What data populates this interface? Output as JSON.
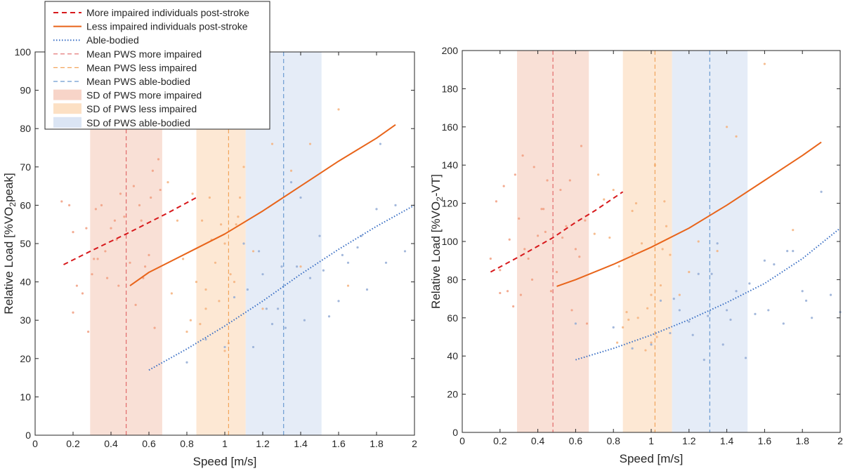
{
  "chart_data": [
    {
      "type": "line",
      "xlabel": "Speed [m/s]",
      "ylabel": {
        "pre": "Relative Load [%VO",
        "sub": "2",
        "post": "peak]"
      },
      "xlim": [
        0,
        2
      ],
      "ylim": [
        0,
        100
      ],
      "xticks": [
        0,
        0.2,
        0.4,
        0.6,
        0.8,
        1,
        1.2,
        1.4,
        1.6,
        1.8,
        2
      ],
      "xtick_labels": [
        "0",
        "0.2",
        "0.4",
        "0.6",
        "0.8",
        "1",
        "1.2",
        "1.4",
        "1.6",
        "1.8",
        "2"
      ],
      "yticks": [
        0,
        10,
        20,
        30,
        40,
        50,
        60,
        70,
        80,
        90,
        100
      ],
      "ytick_labels": [
        "0",
        "10",
        "20",
        "30",
        "40",
        "50",
        "60",
        "70",
        "80",
        "90",
        "100"
      ],
      "grid": false,
      "legend_position": "top-left",
      "series": [
        {
          "name": "More impaired individuals post-stroke",
          "style": "dashed",
          "color": "#d7191c",
          "x": [
            0.15,
            0.3,
            0.48,
            0.6,
            0.7,
            0.85
          ],
          "y": [
            44.5,
            48.2,
            52.5,
            55.5,
            58,
            62
          ]
        },
        {
          "name": "Less impaired individuals post-stroke",
          "style": "solid",
          "color": "#e8641a",
          "x": [
            0.5,
            0.6,
            0.8,
            1.0,
            1.2,
            1.4,
            1.6,
            1.8,
            1.9
          ],
          "y": [
            39,
            42.5,
            47.5,
            52.5,
            58.5,
            65,
            71.5,
            77.5,
            81
          ]
        },
        {
          "name": "Able-bodied",
          "style": "dotted",
          "color": "#3a6fc4",
          "x": [
            0.6,
            0.8,
            1.0,
            1.2,
            1.4,
            1.6,
            1.8,
            2.0
          ],
          "y": [
            17,
            22.5,
            28.5,
            35,
            42,
            48.5,
            54.5,
            60
          ]
        }
      ],
      "mean_lines": [
        {
          "name": "Mean PWS more impaired",
          "x": 0.48,
          "color": "#e26a6a"
        },
        {
          "name": "Mean PWS less impaired",
          "x": 1.02,
          "color": "#f2a55c"
        },
        {
          "name": "Mean PWS able-bodied",
          "x": 1.31,
          "color": "#6b9bd1"
        }
      ],
      "sd_bands": [
        {
          "name": "SD of PWS more impaired",
          "x0": 0.29,
          "x1": 0.67,
          "color": "#f4c6b5"
        },
        {
          "name": "SD of PWS less impaired",
          "x0": 0.85,
          "x1": 1.11,
          "color": "#fbd5b0"
        },
        {
          "name": "SD of PWS able-bodied",
          "x0": 1.11,
          "x1": 1.51,
          "color": "#cfdcf0"
        }
      ],
      "scatter": [
        {
          "group": "more impaired",
          "color": "#f19d80",
          "x": [
            0.14,
            0.18,
            0.2,
            0.25,
            0.28,
            0.3,
            0.32,
            0.35,
            0.38,
            0.4,
            0.42,
            0.45,
            0.5,
            0.52,
            0.55,
            0.58,
            0.6,
            0.62,
            0.65,
            0.22,
            0.27,
            0.33,
            0.37,
            0.43,
            0.47,
            0.53,
            0.57,
            0.63,
            0.66,
            0.2,
            0.31,
            0.44,
            0.56,
            0.61
          ],
          "y": [
            61,
            60,
            53,
            37,
            27,
            42,
            59,
            60,
            41,
            54,
            56,
            63,
            45,
            65,
            60,
            44,
            47,
            69,
            72,
            39,
            54,
            46,
            48,
            51,
            57,
            34,
            41,
            28,
            64,
            32,
            46,
            39,
            56,
            62
          ]
        },
        {
          "group": "less impaired",
          "color": "#f5b27c",
          "x": [
            0.7,
            0.75,
            0.8,
            0.85,
            0.88,
            0.9,
            0.92,
            0.95,
            0.98,
            1.0,
            1.02,
            1.05,
            1.08,
            1.1,
            0.72,
            0.78,
            0.83,
            0.87,
            0.93,
            0.97,
            1.03,
            1.07,
            1.15,
            1.25,
            1.35,
            1.45,
            1.6,
            1.65,
            0.82,
            0.9,
            1.0,
            1.06,
            1.2,
            1.4
          ],
          "y": [
            66,
            56,
            27,
            40,
            56,
            33,
            62,
            45,
            55,
            50,
            24,
            40,
            62,
            70,
            37,
            46,
            63,
            29,
            51,
            35,
            42,
            57,
            48,
            76,
            69,
            76,
            85,
            39,
            30,
            38,
            22,
            55,
            33,
            44
          ]
        },
        {
          "group": "able-bodied",
          "color": "#93acd5",
          "x": [
            0.8,
            0.9,
            1.0,
            1.05,
            1.1,
            1.15,
            1.2,
            1.25,
            1.3,
            1.35,
            1.4,
            1.45,
            1.5,
            1.55,
            1.6,
            1.65,
            1.7,
            1.75,
            1.8,
            1.85,
            1.9,
            1.95,
            1.12,
            1.22,
            1.32,
            1.42,
            1.52,
            1.62,
            1.72,
            1.82,
            1.38,
            1.28,
            1.18
          ],
          "y": [
            19,
            25,
            23,
            36,
            50,
            23,
            42,
            29,
            44,
            66,
            62,
            41,
            52,
            31,
            35,
            45,
            49,
            38,
            59,
            45,
            60,
            48,
            38,
            33,
            28,
            30,
            43,
            47,
            52,
            76,
            44,
            33,
            48
          ]
        }
      ]
    },
    {
      "type": "line",
      "xlabel": "Speed [m/s]",
      "ylabel": {
        "pre": "Relative Load [%VO",
        "sub": "2",
        "post": "-VT]"
      },
      "xlim": [
        0,
        2
      ],
      "ylim": [
        0,
        200
      ],
      "xticks": [
        0,
        0.2,
        0.4,
        0.6,
        0.8,
        1,
        1.2,
        1.4,
        1.6,
        1.8,
        2
      ],
      "xtick_labels": [
        "0",
        "0.2",
        "0.4",
        "0.6",
        "0.8",
        "1",
        "1.2",
        "1.4",
        "1.6",
        "1.8",
        "2"
      ],
      "yticks": [
        0,
        20,
        40,
        60,
        80,
        100,
        120,
        140,
        160,
        180,
        200
      ],
      "ytick_labels": [
        "0",
        "20",
        "40",
        "60",
        "80",
        "100",
        "120",
        "140",
        "160",
        "180",
        "200"
      ],
      "grid": false,
      "series": [
        {
          "name": "More impaired individuals post-stroke",
          "style": "dashed",
          "color": "#d7191c",
          "x": [
            0.15,
            0.3,
            0.48,
            0.6,
            0.7,
            0.85
          ],
          "y": [
            84,
            92,
            102,
            110,
            116,
            126
          ]
        },
        {
          "name": "Less impaired individuals post-stroke",
          "style": "solid",
          "color": "#e8641a",
          "x": [
            0.5,
            0.6,
            0.8,
            1.0,
            1.2,
            1.4,
            1.6,
            1.8,
            1.9
          ],
          "y": [
            76.5,
            80,
            88,
            97,
            107,
            119,
            132,
            145,
            152
          ]
        },
        {
          "name": "Able-bodied",
          "style": "dotted",
          "color": "#3a6fc4",
          "x": [
            0.6,
            0.8,
            1.0,
            1.2,
            1.4,
            1.6,
            1.8,
            2.0
          ],
          "y": [
            38,
            44,
            51,
            59,
            68,
            78,
            91,
            107
          ]
        }
      ],
      "mean_lines": [
        {
          "name": "Mean PWS more impaired",
          "x": 0.48,
          "color": "#e26a6a"
        },
        {
          "name": "Mean PWS less impaired",
          "x": 1.02,
          "color": "#f2a55c"
        },
        {
          "name": "Mean PWS able-bodied",
          "x": 1.31,
          "color": "#6b9bd1"
        }
      ],
      "sd_bands": [
        {
          "name": "SD of PWS more impaired",
          "x0": 0.29,
          "x1": 0.67,
          "color": "#f4c6b5"
        },
        {
          "name": "SD of PWS less impaired",
          "x0": 0.85,
          "x1": 1.11,
          "color": "#fbd5b0"
        },
        {
          "name": "SD of PWS able-bodied",
          "x0": 1.11,
          "x1": 1.51,
          "color": "#cfdcf0"
        }
      ],
      "scatter": [
        {
          "group": "more impaired",
          "color": "#f19d80",
          "x": [
            0.15,
            0.18,
            0.2,
            0.22,
            0.25,
            0.28,
            0.3,
            0.32,
            0.35,
            0.38,
            0.4,
            0.42,
            0.45,
            0.5,
            0.52,
            0.55,
            0.58,
            0.6,
            0.63,
            0.65,
            0.24,
            0.27,
            0.33,
            0.37,
            0.43,
            0.47,
            0.53,
            0.57,
            0.62,
            0.66,
            0.2,
            0.31,
            0.44
          ],
          "y": [
            91,
            121,
            85,
            129,
            101,
            135,
            112,
            145,
            91,
            139,
            103,
            117,
            132,
            84,
            127,
            108,
            64,
            96,
            150,
            111,
            74,
            66,
            96,
            80,
            117,
            74,
            102,
            132,
            92,
            57,
            73,
            72,
            105
          ]
        },
        {
          "group": "less impaired",
          "color": "#f5b27c",
          "x": [
            0.7,
            0.75,
            0.8,
            0.85,
            0.88,
            0.9,
            0.92,
            0.95,
            0.98,
            1.0,
            1.02,
            1.05,
            1.08,
            1.1,
            0.72,
            0.78,
            0.83,
            0.87,
            0.93,
            0.97,
            1.03,
            1.07,
            1.15,
            1.25,
            1.35,
            1.45,
            1.6,
            1.75,
            0.82,
            0.9,
            1.0,
            1.06,
            1.2,
            1.4
          ],
          "y": [
            104,
            122,
            127,
            55,
            59,
            94,
            120,
            99,
            65,
            72,
            140,
            77,
            108,
            93,
            135,
            102,
            87,
            63,
            60,
            43,
            50,
            121,
            72,
            100,
            95,
            155,
            193,
            106,
            47,
            116,
            47,
            96,
            84,
            160
          ]
        },
        {
          "group": "able-bodied",
          "color": "#93acd5",
          "x": [
            0.6,
            0.8,
            0.9,
            1.0,
            1.05,
            1.1,
            1.15,
            1.2,
            1.25,
            1.3,
            1.35,
            1.4,
            1.45,
            1.5,
            1.55,
            1.6,
            1.65,
            1.7,
            1.75,
            1.8,
            1.85,
            1.9,
            1.95,
            2.0,
            1.12,
            1.22,
            1.32,
            1.42,
            1.52,
            1.62,
            1.72,
            1.82,
            1.38,
            1.28
          ],
          "y": [
            57,
            55,
            44,
            46,
            69,
            52,
            64,
            58,
            83,
            61,
            99,
            64,
            74,
            39,
            62,
            90,
            88,
            57,
            95,
            74,
            60,
            126,
            72,
            63,
            70,
            51,
            83,
            59,
            78,
            64,
            95,
            69,
            46,
            38
          ]
        }
      ]
    }
  ]
}
